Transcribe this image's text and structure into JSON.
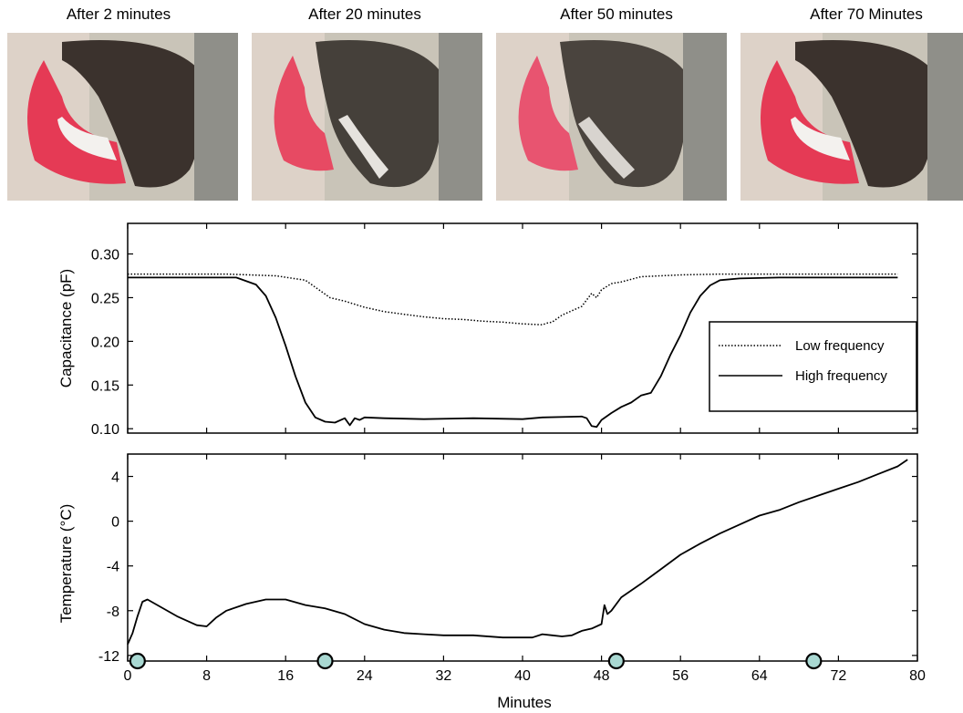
{
  "photos": [
    {
      "label": "After 2 minutes"
    },
    {
      "label": "After 20 minutes"
    },
    {
      "label": "After 50 minutes"
    },
    {
      "label": "After 70 Minutes"
    }
  ],
  "chart_data": [
    {
      "type": "line",
      "ylabel": "Capacitance (pF)",
      "xlim": [
        0,
        80
      ],
      "ylim": [
        0.095,
        0.335
      ],
      "yticks": [
        "0.10",
        "0.15",
        "0.20",
        "0.25",
        "0.30"
      ],
      "ytick_values": [
        0.1,
        0.15,
        0.2,
        0.25,
        0.3
      ],
      "legend": "right",
      "series": [
        {
          "name": "Low frequency",
          "style": "dotted",
          "x": [
            0,
            10,
            15,
            18,
            19,
            19.5,
            20,
            20.5,
            22,
            24,
            26,
            28,
            30,
            32,
            34,
            36,
            38,
            40,
            42,
            42.5,
            43,
            44,
            46,
            47,
            47.5,
            48,
            49,
            50,
            52,
            56,
            60,
            70,
            78
          ],
          "y": [
            0.277,
            0.277,
            0.275,
            0.27,
            0.262,
            0.258,
            0.254,
            0.25,
            0.246,
            0.239,
            0.234,
            0.231,
            0.228,
            0.226,
            0.225,
            0.223,
            0.222,
            0.22,
            0.219,
            0.221,
            0.222,
            0.23,
            0.24,
            0.255,
            0.25,
            0.259,
            0.266,
            0.268,
            0.274,
            0.276,
            0.277,
            0.277,
            0.277
          ]
        },
        {
          "name": "High frequency",
          "style": "solid",
          "x": [
            0,
            11,
            13,
            14,
            15,
            16,
            17,
            18,
            19,
            20,
            21,
            22,
            22.5,
            23,
            23.5,
            24,
            26,
            30,
            35,
            40,
            42,
            46,
            46.5,
            47,
            47.5,
            48,
            49,
            50,
            51,
            52,
            53,
            54,
            55,
            56,
            57,
            58,
            59,
            60,
            62,
            66,
            70,
            78
          ],
          "y": [
            0.273,
            0.273,
            0.265,
            0.252,
            0.227,
            0.195,
            0.16,
            0.13,
            0.113,
            0.108,
            0.107,
            0.112,
            0.104,
            0.112,
            0.11,
            0.113,
            0.112,
            0.111,
            0.112,
            0.111,
            0.113,
            0.114,
            0.112,
            0.103,
            0.102,
            0.11,
            0.118,
            0.125,
            0.13,
            0.138,
            0.141,
            0.16,
            0.185,
            0.207,
            0.233,
            0.252,
            0.264,
            0.27,
            0.272,
            0.273,
            0.273,
            0.273
          ]
        }
      ]
    },
    {
      "type": "line",
      "xlabel": "Minutes",
      "ylabel": "Temperature (°C)",
      "xlim": [
        0,
        80
      ],
      "ylim": [
        -12.5,
        6
      ],
      "xticks": [
        "0",
        "8",
        "16",
        "24",
        "32",
        "40",
        "48",
        "56",
        "64",
        "72",
        "80"
      ],
      "xtick_values": [
        0,
        8,
        16,
        24,
        32,
        40,
        48,
        56,
        64,
        72,
        80
      ],
      "yticks": [
        "-12",
        "-8",
        "-4",
        "0",
        "4"
      ],
      "ytick_values": [
        -12,
        -8,
        -4,
        0,
        4
      ],
      "series": [
        {
          "style": "solid",
          "x": [
            0,
            0.5,
            1,
            1.5,
            2,
            3,
            5,
            7,
            8,
            9,
            10,
            12,
            14,
            16,
            18,
            20,
            22,
            24,
            26,
            28,
            30,
            32,
            35,
            38,
            41,
            42,
            43,
            44,
            45,
            46,
            47,
            48,
            48.3,
            48.6,
            49,
            50,
            52,
            54,
            56,
            58,
            60,
            62,
            64,
            66,
            68,
            70,
            72,
            74,
            76,
            78,
            79
          ],
          "y": [
            -11.0,
            -10.0,
            -8.5,
            -7.2,
            -7.0,
            -7.5,
            -8.5,
            -9.3,
            -9.4,
            -8.6,
            -8.0,
            -7.4,
            -7.0,
            -7.0,
            -7.5,
            -7.8,
            -8.3,
            -9.2,
            -9.7,
            -10.0,
            -10.1,
            -10.2,
            -10.2,
            -10.4,
            -10.4,
            -10.1,
            -10.2,
            -10.3,
            -10.2,
            -9.8,
            -9.6,
            -9.2,
            -7.5,
            -8.3,
            -8.0,
            -6.8,
            -5.6,
            -4.3,
            -3.0,
            -2.0,
            -1.1,
            -0.3,
            0.5,
            1.0,
            1.7,
            2.3,
            2.9,
            3.5,
            4.2,
            4.9,
            5.5
          ]
        }
      ],
      "markers": {
        "x": [
          1,
          20,
          49.5,
          69.5
        ],
        "color": "#a9d8d2"
      }
    }
  ]
}
